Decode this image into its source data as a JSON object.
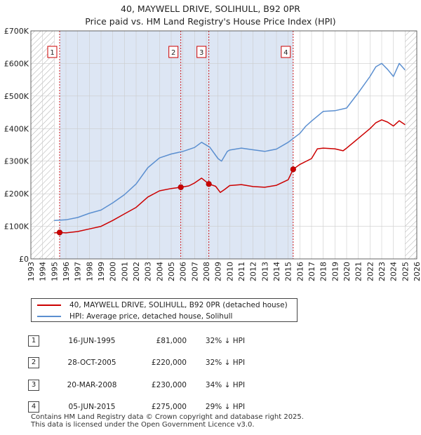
{
  "header": {
    "title": "40, MAYWELL DRIVE, SOLIHULL, B92 0PR",
    "subtitle": "Price paid vs. HM Land Registry's House Price Index (HPI)"
  },
  "chart_data": {
    "type": "line",
    "title": "40, MAYWELL DRIVE, SOLIHULL, B92 0PR",
    "subtitle": "Price paid vs. HM Land Registry's House Price Index (HPI)",
    "xlabel": "",
    "ylabel": "",
    "xlim": [
      1993,
      2026
    ],
    "ylim": [
      0,
      700000
    ],
    "x_ticks": [
      1993,
      1994,
      1995,
      1996,
      1997,
      1998,
      1999,
      2000,
      2001,
      2002,
      2003,
      2004,
      2005,
      2006,
      2007,
      2008,
      2009,
      2010,
      2011,
      2012,
      2013,
      2014,
      2015,
      2016,
      2017,
      2018,
      2019,
      2020,
      2021,
      2022,
      2023,
      2024,
      2025,
      2026
    ],
    "x_tick_labels": [
      "1993",
      "1994",
      "1995",
      "1996",
      "1997",
      "1998",
      "1999",
      "2000",
      "2001",
      "2002",
      "2003",
      "2004",
      "2005",
      "2006",
      "2007",
      "2008",
      "2009",
      "2010",
      "2011",
      "2012",
      "2013",
      "2014",
      "2015",
      "2016",
      "2017",
      "2018",
      "2019",
      "2020",
      "2021",
      "2022",
      "2023",
      "2024",
      "2025",
      "2026"
    ],
    "y_ticks": [
      0,
      100000,
      200000,
      300000,
      400000,
      500000,
      600000,
      700000
    ],
    "y_tick_labels": [
      "£0",
      "£100K",
      "£200K",
      "£300K",
      "£400K",
      "£500K",
      "£600K",
      "£700K"
    ],
    "grid": true,
    "hatched_ranges": [
      [
        1993,
        1995.0
      ],
      [
        2025.0,
        2026
      ]
    ],
    "shaded_range": [
      1995.46,
      2015.43
    ],
    "series": [
      {
        "name": "40, MAYWELL DRIVE, SOLIHULL, B92 0PR (detached house)",
        "color": "#cc0000",
        "x": [
          1995.0,
          1995.46,
          1996,
          1997,
          1998,
          1999,
          2000,
          2001,
          2002,
          2003,
          2004,
          2005,
          2005.82,
          2006.5,
          2007,
          2007.6,
          2008.22,
          2008.8,
          2009.2,
          2009.6,
          2010,
          2011,
          2012,
          2013,
          2014,
          2015,
          2015.43,
          2016,
          2017,
          2017.5,
          2018,
          2019,
          2019.7,
          2020,
          2021,
          2022,
          2022.5,
          2023,
          2023.5,
          2024,
          2024.5,
          2025.0
        ],
        "values": [
          80000,
          81000,
          80000,
          84000,
          92000,
          100000,
          118000,
          138000,
          158000,
          190000,
          209000,
          216000,
          220000,
          224000,
          233000,
          248000,
          230000,
          223000,
          204000,
          214000,
          225000,
          228000,
          222000,
          220000,
          226000,
          243000,
          275000,
          290000,
          308000,
          338000,
          340000,
          338000,
          332000,
          340000,
          370000,
          400000,
          418000,
          427000,
          420000,
          408000,
          424000,
          412000
        ]
      },
      {
        "name": "HPI: Average price, detached house, Solihull",
        "color": "#5b8fd0",
        "x": [
          1995.0,
          1996,
          1997,
          1998,
          1999,
          2000,
          2001,
          2002,
          2003,
          2004,
          2005,
          2006,
          2007,
          2007.6,
          2008.3,
          2009.0,
          2009.3,
          2009.8,
          2010,
          2011,
          2012,
          2013,
          2014,
          2015,
          2016,
          2016.5,
          2017,
          2018,
          2019,
          2020,
          2021,
          2022,
          2022.5,
          2023,
          2023.5,
          2024,
          2024.5,
          2025.0
        ],
        "values": [
          118000,
          120000,
          127000,
          140000,
          150000,
          172000,
          197000,
          230000,
          280000,
          310000,
          322000,
          330000,
          342000,
          358000,
          343000,
          308000,
          300000,
          330000,
          334000,
          340000,
          335000,
          330000,
          337000,
          358000,
          385000,
          407000,
          423000,
          453000,
          455000,
          463000,
          510000,
          560000,
          590000,
          600000,
          582000,
          560000,
          600000,
          580000
        ]
      }
    ],
    "markers": [
      {
        "number": "1",
        "x": 1995.46,
        "y": 81000
      },
      {
        "number": "2",
        "x": 2005.82,
        "y": 220000
      },
      {
        "number": "3",
        "x": 2008.22,
        "y": 230000
      },
      {
        "number": "4",
        "x": 2015.43,
        "y": 275000
      }
    ]
  },
  "legend": {
    "property_label": "40, MAYWELL DRIVE, SOLIHULL, B92 0PR (detached house)",
    "hpi_label": "HPI: Average price, detached house, Solihull",
    "property_color": "#cc0000",
    "hpi_color": "#5b8fd0"
  },
  "sales": [
    {
      "number": "1",
      "date": "16-JUN-1995",
      "price": "£81,000",
      "change": "32% ↓ HPI"
    },
    {
      "number": "2",
      "date": "28-OCT-2005",
      "price": "£220,000",
      "change": "32% ↓ HPI"
    },
    {
      "number": "3",
      "date": "20-MAR-2008",
      "price": "£230,000",
      "change": "34% ↓ HPI"
    },
    {
      "number": "4",
      "date": "05-JUN-2015",
      "price": "£275,000",
      "change": "29% ↓ HPI"
    }
  ],
  "footer": {
    "line1": "Contains HM Land Registry data © Crown copyright and database right 2025.",
    "line2": "This data is licensed under the Open Government Licence v3.0."
  }
}
